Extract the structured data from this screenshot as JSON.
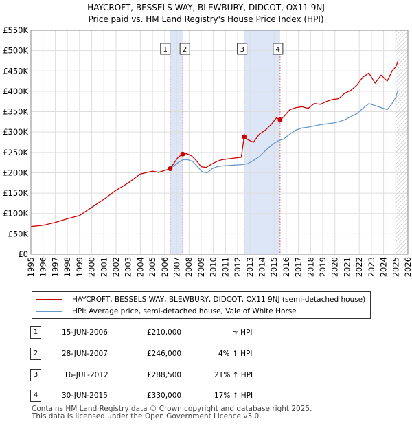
{
  "header": {
    "title_line1": "HAYCROFT, BESSELS WAY, BLEWBURY, DIDCOT, OX11 9NJ",
    "title_line2": "Price paid vs. HM Land Registry's House Price Index (HPI)"
  },
  "colors": {
    "property": "#cc0000",
    "hpi": "#6699cc",
    "shade": "#dde6f6",
    "grid": "#dddddd",
    "vline": "#dd6666"
  },
  "chart_data": {
    "type": "line",
    "title": "HAYCROFT, BESSELS WAY, BLEWBURY, DIDCOT, OX11 9NJ",
    "xlim": [
      1995,
      2026
    ],
    "ylim": [
      0,
      550000
    ],
    "y_ticks": [
      0,
      50000,
      100000,
      150000,
      200000,
      250000,
      300000,
      350000,
      400000,
      450000,
      500000,
      550000
    ],
    "y_tick_labels": [
      "£0",
      "£50K",
      "£100K",
      "£150K",
      "£200K",
      "£250K",
      "£300K",
      "£350K",
      "£400K",
      "£450K",
      "£500K",
      "£550K"
    ],
    "x_ticks": [
      1995,
      1996,
      1997,
      1998,
      1999,
      2000,
      2001,
      2002,
      2003,
      2004,
      2005,
      2006,
      2007,
      2008,
      2009,
      2010,
      2011,
      2012,
      2013,
      2014,
      2015,
      2016,
      2017,
      2018,
      2019,
      2020,
      2021,
      2022,
      2023,
      2024,
      2025,
      2026
    ],
    "x_tick_labels": [
      "1995",
      "1996",
      "1997",
      "1998",
      "1999",
      "2000",
      "2001",
      "2002",
      "2003",
      "2004",
      "2005",
      "2006",
      "2007",
      "2008",
      "2009",
      "2010",
      "2011",
      "2012",
      "2013",
      "2014",
      "2015",
      "2016",
      "2017",
      "2018",
      "2019",
      "2020",
      "2021",
      "2022",
      "2023",
      "2024",
      "2025",
      "2026"
    ],
    "shaded_ranges": [
      [
        2006.45,
        2007.49
      ],
      [
        2012.54,
        2015.49
      ]
    ],
    "hatched_from": 2025.0,
    "series": [
      {
        "name": "HAYCROFT, BESSELS WAY, BLEWBURY, DIDCOT, OX11 9NJ (semi-detached house)",
        "color": "#cc0000",
        "x": [
          1995.0,
          1996.0,
          1997.0,
          1998.0,
          1999.0,
          2000.0,
          2001.0,
          2002.0,
          2003.0,
          2004.0,
          2005.0,
          2005.5,
          2006.45,
          2006.8,
          2007.1,
          2007.49,
          2007.8,
          2008.2,
          2008.6,
          2009.0,
          2009.4,
          2009.9,
          2010.3,
          2010.7,
          2011.2,
          2011.7,
          2012.3,
          2012.54,
          2012.8,
          2013.3,
          2013.8,
          2014.3,
          2014.8,
          2015.2,
          2015.49,
          2015.8,
          2016.3,
          2016.8,
          2017.3,
          2017.8,
          2018.3,
          2018.8,
          2019.3,
          2019.8,
          2020.3,
          2020.8,
          2021.3,
          2021.8,
          2022.3,
          2022.8,
          2023.3,
          2023.8,
          2024.3,
          2024.7,
          2025.0,
          2025.2
        ],
        "values": [
          68000,
          71000,
          78000,
          87000,
          95000,
          115000,
          135000,
          157000,
          175000,
          197000,
          204000,
          201000,
          210000,
          225000,
          238000,
          246000,
          247000,
          242000,
          230000,
          215000,
          213000,
          222000,
          228000,
          232000,
          234000,
          236000,
          238000,
          288500,
          282000,
          275000,
          295000,
          305000,
          320000,
          335000,
          330000,
          338000,
          355000,
          360000,
          362000,
          358000,
          370000,
          368000,
          375000,
          380000,
          382000,
          395000,
          402000,
          415000,
          435000,
          445000,
          420000,
          440000,
          425000,
          450000,
          460000,
          475000
        ]
      },
      {
        "name": "HPI: Average price, semi-detached house, Vale of White Horse",
        "color": "#6699cc",
        "x": [
          2006.45,
          2006.8,
          2007.1,
          2007.5,
          2007.9,
          2008.3,
          2008.7,
          2009.1,
          2009.5,
          2009.9,
          2010.3,
          2010.8,
          2011.3,
          2011.8,
          2012.3,
          2012.8,
          2013.3,
          2013.8,
          2014.3,
          2014.8,
          2015.3,
          2015.8,
          2016.3,
          2016.8,
          2017.3,
          2017.8,
          2018.3,
          2018.8,
          2019.3,
          2019.8,
          2020.3,
          2020.8,
          2021.3,
          2021.8,
          2022.3,
          2022.8,
          2023.3,
          2023.8,
          2024.3,
          2024.7,
          2025.0,
          2025.2
        ],
        "values": [
          210000,
          218000,
          225000,
          232000,
          232000,
          228000,
          215000,
          202000,
          200000,
          210000,
          215000,
          217000,
          218000,
          219000,
          220000,
          222000,
          230000,
          240000,
          255000,
          268000,
          278000,
          283000,
          295000,
          305000,
          310000,
          312000,
          315000,
          318000,
          320000,
          322000,
          325000,
          330000,
          338000,
          345000,
          358000,
          370000,
          365000,
          360000,
          355000,
          370000,
          385000,
          405000
        ]
      }
    ],
    "sales": [
      {
        "id": "1",
        "x": 2006.45,
        "value": 210000
      },
      {
        "id": "2",
        "x": 2007.49,
        "value": 246000
      },
      {
        "id": "3",
        "x": 2012.54,
        "value": 288500
      },
      {
        "id": "4",
        "x": 2015.49,
        "value": 330000
      }
    ]
  },
  "legend": {
    "property_label": "HAYCROFT, BESSELS WAY, BLEWBURY, DIDCOT, OX11 9NJ (semi-detached house)",
    "hpi_label": "HPI: Average price, semi-detached house, Vale of White Horse"
  },
  "transactions": [
    {
      "num": "1",
      "date": "15-JUN-2006",
      "price": "£210,000",
      "hpi": "≈ HPI"
    },
    {
      "num": "2",
      "date": "28-JUN-2007",
      "price": "£246,000",
      "hpi": "4% ↑ HPI"
    },
    {
      "num": "3",
      "date": "16-JUL-2012",
      "price": "£288,500",
      "hpi": "21% ↑ HPI"
    },
    {
      "num": "4",
      "date": "30-JUN-2015",
      "price": "£330,000",
      "hpi": "17% ↑ HPI"
    }
  ],
  "footer": {
    "line1": "Contains HM Land Registry data © Crown copyright and database right 2025.",
    "line2": "This data is licensed under the Open Government Licence v3.0."
  }
}
